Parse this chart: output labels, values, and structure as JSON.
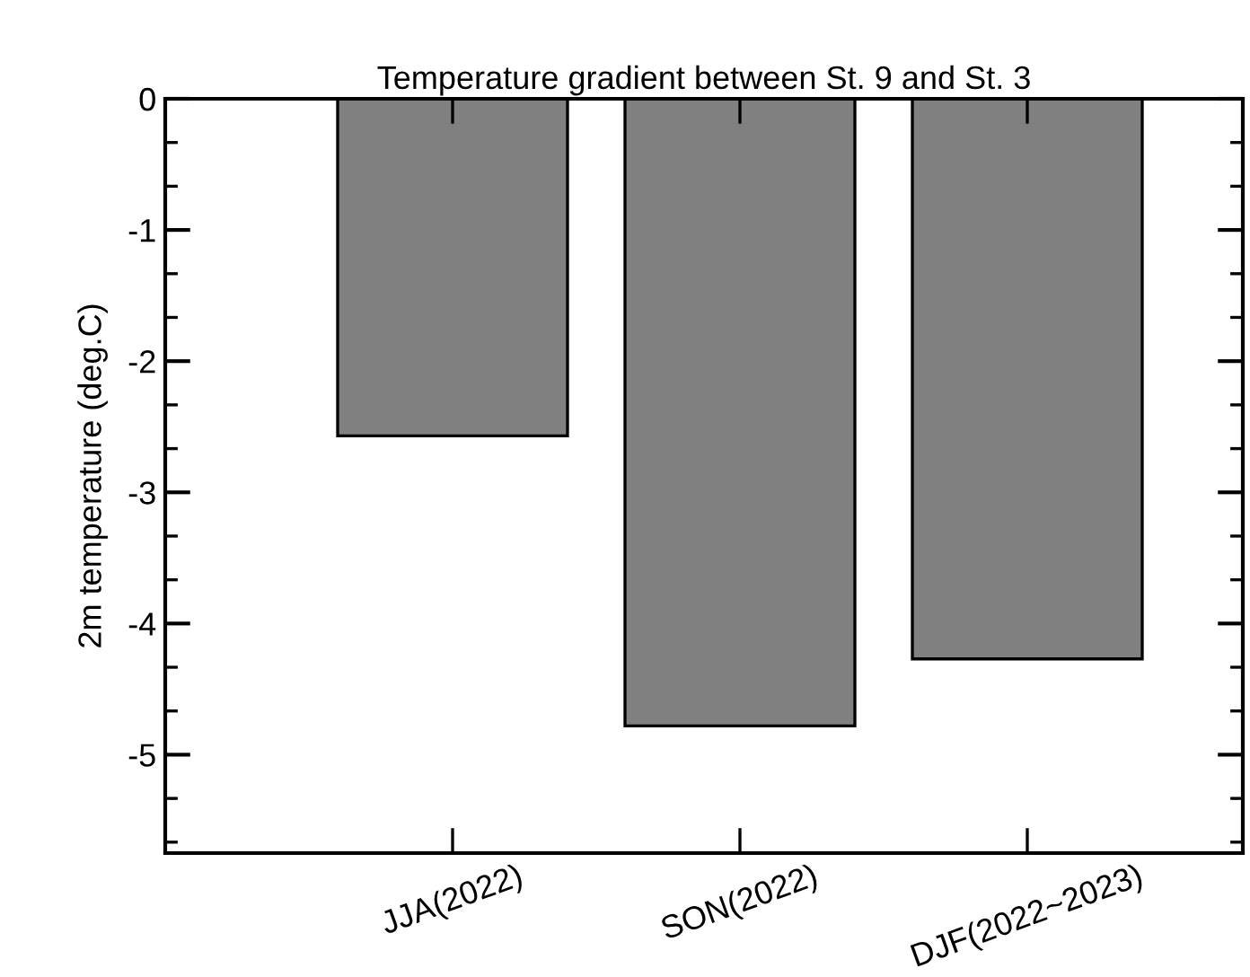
{
  "chart_data": {
    "type": "bar",
    "title": "Temperature gradient between St. 9 and St. 3",
    "ylabel": "2m temperature (deg.C)",
    "categories": [
      "JJA(2022)",
      "SON(2022)",
      "DJF(2022~2023)"
    ],
    "values": [
      -2.57,
      -4.78,
      -4.27
    ],
    "color": "#808080",
    "ylim": [
      -5.75,
      0
    ],
    "yticks": [
      0,
      -1,
      -2,
      -3,
      -4,
      -5
    ],
    "grid": false,
    "legend": false
  }
}
